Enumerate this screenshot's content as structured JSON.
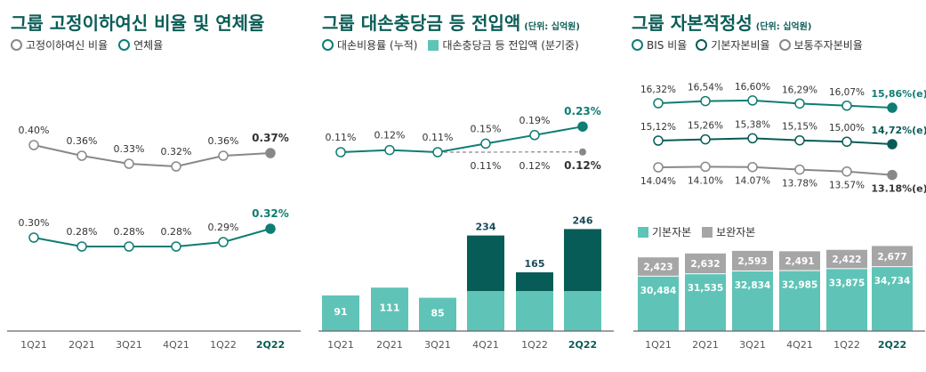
{
  "colors": {
    "teal": "#0e7d74",
    "dark": "#085c57",
    "light": "#5fc4b7",
    "gray": "#888888",
    "lgray": "#a6a6a6"
  },
  "chart_data": [
    {
      "type": "line",
      "title": "그룹 고정이하여신 비율 및 연체율",
      "categories": [
        "1Q21",
        "2Q21",
        "3Q21",
        "4Q21",
        "1Q22",
        "2Q22"
      ],
      "series": [
        {
          "name": "고정이하여신 비율",
          "values": [
            0.4,
            0.36,
            0.33,
            0.32,
            0.36,
            0.37
          ],
          "labels": [
            "0.40%",
            "0.36%",
            "0.33%",
            "0.32%",
            "0.36%",
            "0.37%"
          ]
        },
        {
          "name": "연체율",
          "values": [
            0.3,
            0.28,
            0.28,
            0.28,
            0.29,
            0.32
          ],
          "labels": [
            "0.30%",
            "0.28%",
            "0.28%",
            "0.28%",
            "0.29%",
            "0.32%"
          ]
        }
      ]
    },
    {
      "type": "bar+line",
      "title": "그룹 대손충당금 등 전입액",
      "unit": "(단위: 십억원)",
      "categories": [
        "1Q21",
        "2Q21",
        "3Q21",
        "4Q21",
        "1Q22",
        "2Q22"
      ],
      "bars": {
        "name": "대손충당금 등 전입액 (분기중)",
        "values": [
          91,
          111,
          85,
          234,
          165,
          246
        ]
      },
      "series": [
        {
          "name": "대손비용률 (누적)",
          "values": [
            0.11,
            0.12,
            0.11,
            0.15,
            0.19,
            0.23
          ],
          "labels": [
            "0.11%",
            "0.12%",
            "0.11%",
            "0.15%",
            "0.19%",
            "0.23%"
          ]
        },
        {
          "values": [
            null,
            null,
            0.11,
            0.11,
            0.12,
            0.12
          ],
          "labels": [
            "",
            "",
            "",
            "0.11%",
            "0.12%",
            "0.12%"
          ],
          "style": "dashed"
        }
      ]
    },
    {
      "type": "stacked-bar+line",
      "title": "그룹 자본적정성",
      "unit": "(단위: 십억원)",
      "categories": [
        "1Q21",
        "2Q21",
        "3Q21",
        "4Q21",
        "1Q22",
        "2Q22"
      ],
      "series": [
        {
          "name": "BIS 비율",
          "values": [
            16.32,
            16.54,
            16.6,
            16.29,
            16.07,
            15.86
          ],
          "labels": [
            "16,32%",
            "16,54%",
            "16,60%",
            "16,29%",
            "16,07%",
            "15,86%(e)"
          ]
        },
        {
          "name": "기본자본비율",
          "values": [
            15.12,
            15.26,
            15.38,
            15.15,
            15.0,
            14.72
          ],
          "labels": [
            "15,12%",
            "15,26%",
            "15,38%",
            "15,15%",
            "15,00%",
            "14,72%(e)"
          ]
        },
        {
          "name": "보통주자본비율",
          "values": [
            14.04,
            14.1,
            14.07,
            13.78,
            13.57,
            13.18
          ],
          "labels": [
            "14.04%",
            "14.10%",
            "14.07%",
            "13.78%",
            "13.57%",
            "13.18%(e)"
          ]
        }
      ],
      "stacks": [
        {
          "name": "기본자본",
          "values": [
            30484,
            31535,
            32834,
            32985,
            33875,
            34734
          ],
          "labels": [
            "30,484",
            "31,535",
            "32,834",
            "32,985",
            "33,875",
            "34,734"
          ]
        },
        {
          "name": "보완자본",
          "values": [
            2423,
            2632,
            2593,
            2491,
            2422,
            2677
          ],
          "labels": [
            "2,423",
            "2,632",
            "2,593",
            "2,491",
            "2,422",
            "2,677"
          ]
        }
      ]
    }
  ]
}
